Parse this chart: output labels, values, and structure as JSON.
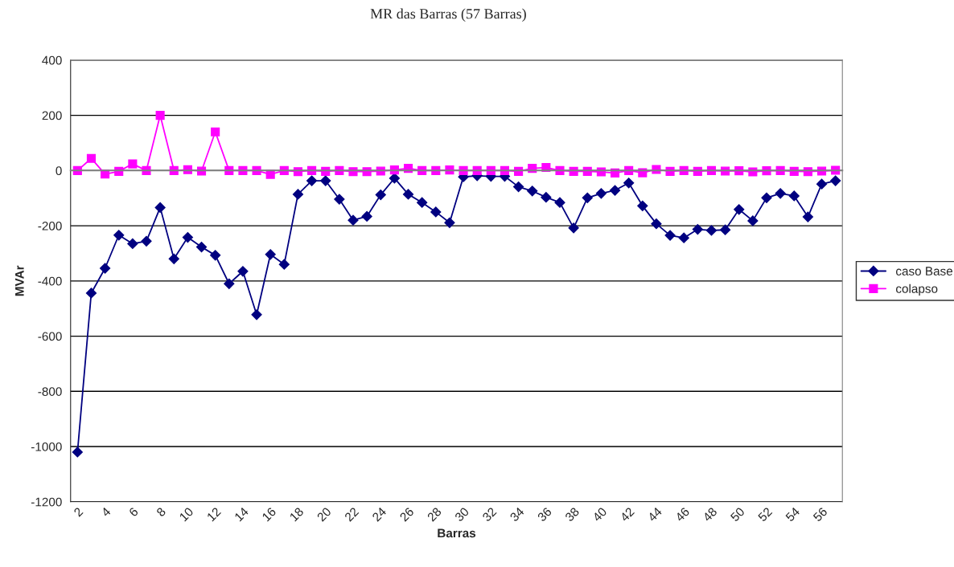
{
  "chart_data": {
    "type": "line",
    "title": "MR das Barras (57 Barras)",
    "xlabel": "Barras",
    "ylabel": "MVAr",
    "categories": [
      "2",
      null,
      "4",
      null,
      "6",
      null,
      "8",
      null,
      "10",
      null,
      "12",
      null,
      "14",
      null,
      "16",
      null,
      "18",
      null,
      "20",
      null,
      "22",
      null,
      "24",
      null,
      "26",
      null,
      "28",
      null,
      "30",
      null,
      "32",
      null,
      "34",
      null,
      "36",
      null,
      "38",
      null,
      "40",
      null,
      "42",
      null,
      "44",
      null,
      "46",
      null,
      "48",
      null,
      "50",
      null,
      "52",
      null,
      "54",
      null,
      "56",
      null
    ],
    "series": [
      {
        "name": "caso Base",
        "color": "#000080",
        "marker": "diamond",
        "values": [
          -1020,
          -444,
          -354,
          -234,
          -265,
          -256,
          -134,
          -320,
          -242,
          -277,
          -307,
          -410,
          -365,
          -522,
          -304,
          -340,
          -86,
          -37,
          -37,
          -104,
          -180,
          -166,
          -88,
          -28,
          -86,
          -116,
          -150,
          -189,
          -23,
          -19,
          -21,
          -21,
          -59,
          -74,
          -97,
          -116,
          -208,
          -99,
          -83,
          -72,
          -45,
          -128,
          -193,
          -235,
          -244,
          -213,
          -217,
          -215,
          -141,
          -182,
          -99,
          -83,
          -92,
          -168,
          -49,
          -37
        ]
      },
      {
        "name": "colapso",
        "color": "#ff00ff",
        "marker": "square",
        "values": [
          0,
          44,
          -13,
          -3,
          24,
          0,
          200,
          0,
          3,
          -2,
          140,
          0,
          0,
          0,
          -14,
          0,
          -4,
          0,
          -3,
          0,
          -4,
          -4,
          -2,
          2,
          8,
          0,
          0,
          2,
          0,
          0,
          0,
          0,
          -3,
          8,
          11,
          0,
          -3,
          -3,
          -5,
          -9,
          0,
          -8,
          4,
          -3,
          0,
          -3,
          0,
          -2,
          -1,
          -5,
          -1,
          0,
          -3,
          -4,
          -2,
          1
        ]
      }
    ],
    "ylim": [
      -1200,
      400
    ],
    "yticks": [
      -1200,
      -1000,
      -800,
      -600,
      -400,
      -200,
      0,
      200,
      400
    ],
    "grid": "y",
    "legend": "right"
  }
}
